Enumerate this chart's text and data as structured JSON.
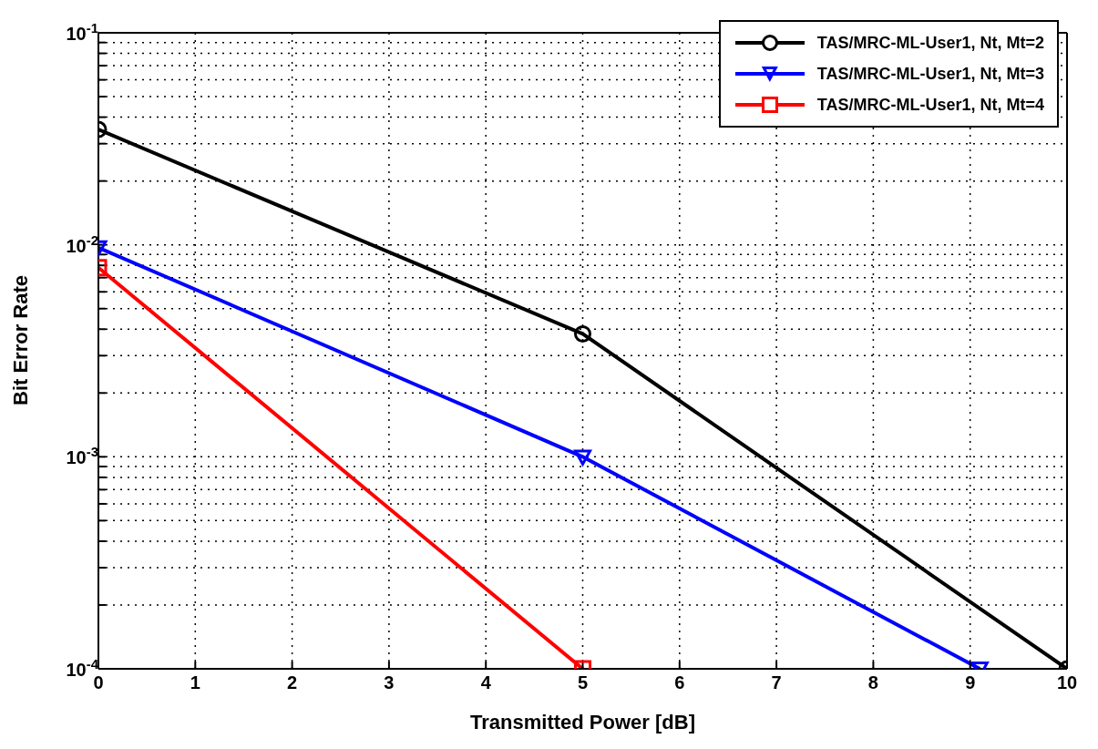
{
  "chart_data": {
    "type": "line",
    "xlabel": "Transmitted Power [dB]",
    "ylabel": "Bit Error Rate",
    "log": "y",
    "grid": true,
    "legend": "top right",
    "line_style": "solid",
    "xlim": [
      0,
      10
    ],
    "xticks": [
      0,
      1,
      2,
      3,
      4,
      5,
      6,
      7,
      8,
      9,
      10
    ],
    "ylim": [
      0.0001,
      0.1
    ],
    "yticks": [
      {
        "value": 0.0001,
        "label": "10$^{-4}$"
      },
      {
        "value": 0.0002,
        "label": null
      },
      {
        "value": 0.0003,
        "label": null
      },
      {
        "value": 0.0004,
        "label": null
      },
      {
        "value": 0.0005,
        "label": null
      },
      {
        "value": 0.0006,
        "label": null
      },
      {
        "value": 0.0007,
        "label": null
      },
      {
        "value": 0.0008,
        "label": null
      },
      {
        "value": 0.0009,
        "label": null
      },
      {
        "value": 0.001,
        "label": "10$^{-3}$"
      },
      {
        "value": 0.002,
        "label": null
      },
      {
        "value": 0.003,
        "label": null
      },
      {
        "value": 0.004,
        "label": null
      },
      {
        "value": 0.005,
        "label": null
      },
      {
        "value": 0.006,
        "label": null
      },
      {
        "value": 0.007,
        "label": null
      },
      {
        "value": 0.008,
        "label": null
      },
      {
        "value": 0.009,
        "label": null
      },
      {
        "value": 0.01,
        "label": "10$^{-2}$"
      },
      {
        "value": 0.02,
        "label": null
      },
      {
        "value": 0.03,
        "label": null
      },
      {
        "value": 0.04,
        "label": null
      },
      {
        "value": 0.05,
        "label": null
      },
      {
        "value": 0.06,
        "label": null
      },
      {
        "value": 0.07,
        "label": null
      },
      {
        "value": 0.08,
        "label": null
      },
      {
        "value": 0.09,
        "label": null
      },
      {
        "value": 0.1,
        "label": "10$^{-1}$"
      }
    ],
    "series": [
      {
        "name": "TAS/MRC-ML-User1, Nt, Mt=2",
        "color": "#000000",
        "marker": "circle",
        "x": [
          0,
          5,
          10
        ],
        "values": [
          0.035,
          0.0038,
          0.0001
        ]
      },
      {
        "name": "TAS/MRC-ML-User1, Nt, Mt=3",
        "color": "#0000ff",
        "marker": "triangle",
        "x": [
          0,
          5,
          9.1
        ],
        "values": [
          0.0097,
          0.001,
          0.0001
        ]
      },
      {
        "name": "TAS/MRC-ML-User1, Nt, Mt=4",
        "color": "#ff0000",
        "marker": "square",
        "x": [
          0,
          5
        ],
        "values": [
          0.0078,
          0.0001
        ]
      }
    ]
  }
}
